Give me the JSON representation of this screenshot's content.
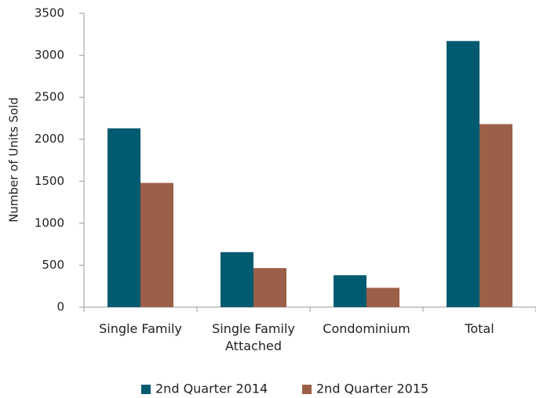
{
  "chart_data": {
    "type": "bar",
    "y_label": "Number of Units Sold",
    "categories": [
      "Single Family",
      "Single Family Attached",
      "Condominium",
      "Total"
    ],
    "series": [
      {
        "name": "2nd Quarter 2014",
        "color": "#005a70",
        "values": [
          2130,
          655,
          380,
          3170
        ]
      },
      {
        "name": "2nd Quarter 2015",
        "color": "#9c5f47",
        "values": [
          1480,
          465,
          230,
          2180
        ]
      }
    ],
    "ylim": [
      0,
      3500
    ],
    "yticks": [
      0,
      500,
      1000,
      1500,
      2000,
      2500,
      3000,
      3500
    ],
    "grid": false,
    "legend": "bottom"
  }
}
